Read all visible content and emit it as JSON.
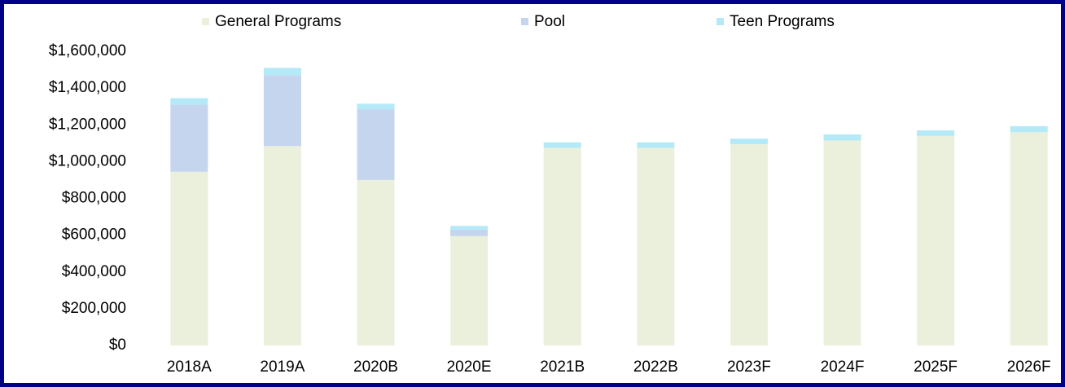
{
  "chart_data": {
    "type": "stacked_bar",
    "categories": [
      "2018A",
      "2019A",
      "2020B",
      "2020E",
      "2021B",
      "2022B",
      "2023F",
      "2024F",
      "2025F",
      "2026F"
    ],
    "series": [
      {
        "name": "General Programs",
        "color": "#ebf0dc",
        "values": [
          945000,
          1085000,
          900000,
          595000,
          1075000,
          1075000,
          1095000,
          1115000,
          1140000,
          1160000
        ]
      },
      {
        "name": "Pool",
        "color": "#c6d5ee",
        "values": [
          365000,
          385000,
          385000,
          35000,
          0,
          0,
          0,
          0,
          0,
          0
        ]
      },
      {
        "name": "Teen Programs",
        "color": "#b4e9f7",
        "values": [
          35000,
          40000,
          30000,
          20000,
          30000,
          30000,
          30000,
          33000,
          30000,
          33000
        ]
      }
    ],
    "ylim": [
      0,
      1600000
    ],
    "yticks": [
      {
        "value": 0,
        "label": "$0"
      },
      {
        "value": 200000,
        "label": "$200,000"
      },
      {
        "value": 400000,
        "label": "$400,000"
      },
      {
        "value": 600000,
        "label": "$600,000"
      },
      {
        "value": 800000,
        "label": "$800,000"
      },
      {
        "value": 1000000,
        "label": "$1,000,000"
      },
      {
        "value": 1200000,
        "label": "$1,200,000"
      },
      {
        "value": 1400000,
        "label": "$1,400,000"
      },
      {
        "value": 1600000,
        "label": "$1,600,000"
      }
    ],
    "legend": "top"
  }
}
